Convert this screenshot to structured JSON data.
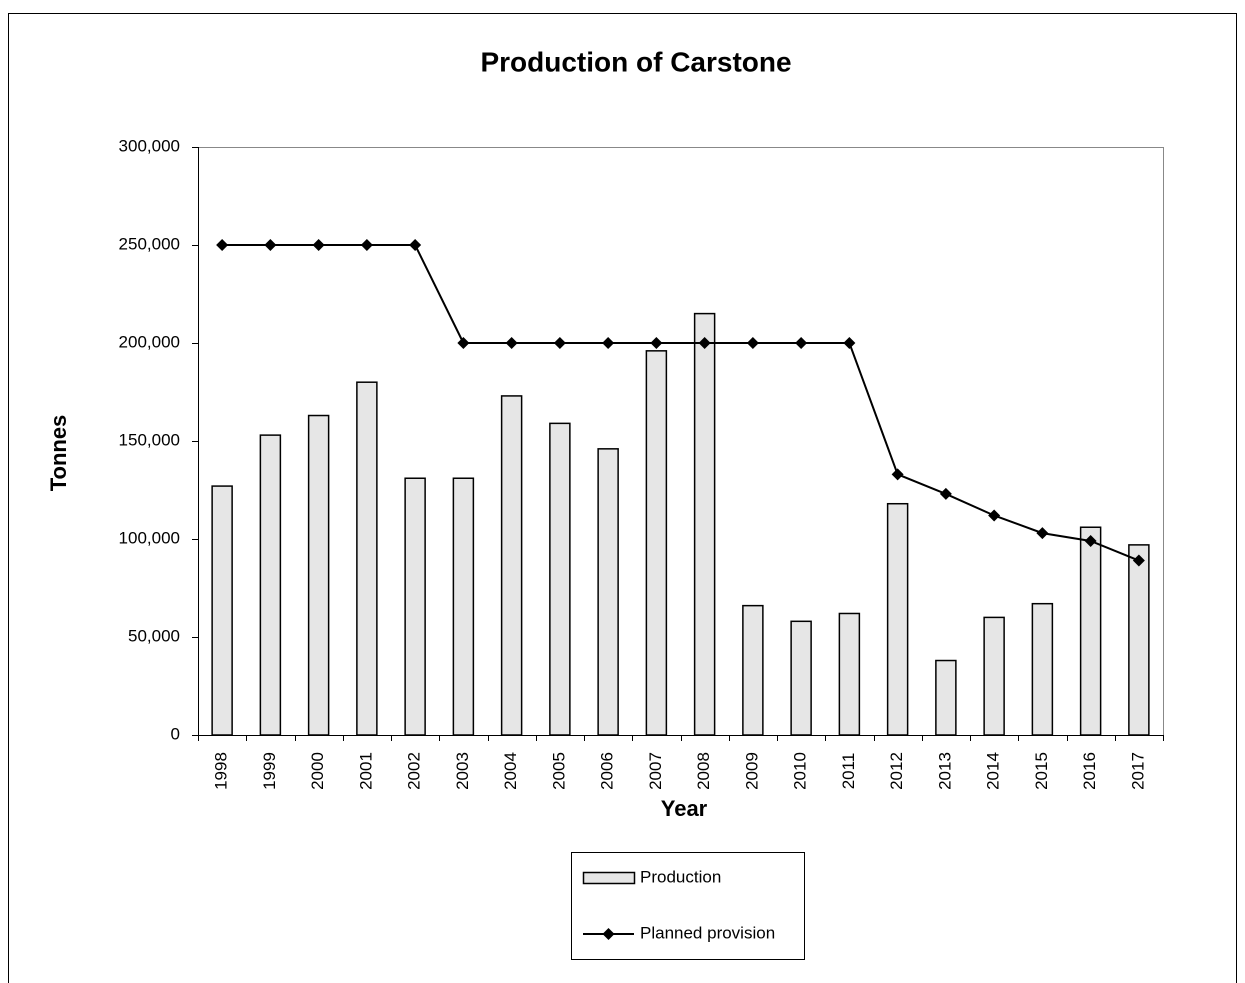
{
  "chart_data": {
    "type": "bar",
    "title": "Production of Carstone",
    "x_label": "Year",
    "y_label": "Tonnes",
    "categories": [
      "1998",
      "1999",
      "2000",
      "2001",
      "2002",
      "2003",
      "2004",
      "2005",
      "2006",
      "2007",
      "2008",
      "2009",
      "2010",
      "2011",
      "2012",
      "2013",
      "2014",
      "2015",
      "2016",
      "2017"
    ],
    "series": [
      {
        "name": "Production",
        "type": "bar",
        "color": "#e6e6e6",
        "values": [
          127000,
          153000,
          163000,
          180000,
          131000,
          131000,
          173000,
          159000,
          146000,
          196000,
          215000,
          66000,
          58000,
          62000,
          118000,
          38000,
          60000,
          67000,
          106000,
          97000
        ]
      },
      {
        "name": "Planned provision",
        "type": "line",
        "color": "#000000",
        "values": [
          250000,
          250000,
          250000,
          250000,
          250000,
          200000,
          200000,
          200000,
          200000,
          200000,
          200000,
          200000,
          200000,
          200000,
          133000,
          123000,
          112000,
          103000,
          99000,
          89000
        ]
      }
    ],
    "ylim": [
      0,
      300000
    ],
    "yticks": [
      0,
      {
        "value": 50000,
        "label": "50,000"
      },
      {
        "value": 100000,
        "label": "100,000"
      },
      {
        "value": 150000,
        "label": "150,000"
      },
      {
        "value": 200000,
        "label": "200,000"
      },
      {
        "value": 250000,
        "label": "250,000"
      },
      {
        "value": 300000,
        "label": "300,000"
      }
    ],
    "grid": false,
    "legend": "bottom"
  }
}
